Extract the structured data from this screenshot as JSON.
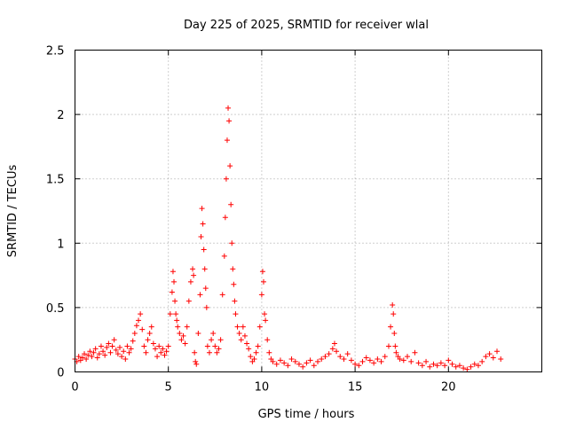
{
  "chart_data": {
    "type": "scatter",
    "title": "Day 225 of 2025, SRMTID for receiver wlal",
    "xlabel": "GPS time / hours",
    "ylabel": "SRMTID / TECUs",
    "xlim": [
      0,
      25
    ],
    "ylim": [
      0,
      2.5
    ],
    "xticks": [
      0,
      5,
      10,
      15,
      20
    ],
    "xtick_labels": [
      "0",
      "5",
      "10",
      "15",
      "20"
    ],
    "yticks": [
      0,
      0.5,
      1,
      1.5,
      2,
      2.5
    ],
    "ytick_labels": [
      "0",
      "0.5",
      "1",
      "1.5",
      "2",
      "2.5"
    ],
    "grid": true,
    "marker": "+",
    "series": [
      {
        "name": "SRMTID",
        "color": "#ff0000",
        "x": [
          0.0,
          0.1,
          0.2,
          0.3,
          0.4,
          0.5,
          0.6,
          0.7,
          0.8,
          0.9,
          1.0,
          1.1,
          1.2,
          1.3,
          1.4,
          1.5,
          1.6,
          1.7,
          1.8,
          1.9,
          2.0,
          2.1,
          2.2,
          2.3,
          2.4,
          2.5,
          2.6,
          2.7,
          2.8,
          2.9,
          3.0,
          3.1,
          3.2,
          3.3,
          3.4,
          3.5,
          3.6,
          3.7,
          3.8,
          3.9,
          4.0,
          4.1,
          4.2,
          4.3,
          4.4,
          4.5,
          4.6,
          4.7,
          4.8,
          4.9,
          5.0,
          5.1,
          5.2,
          5.25,
          5.3,
          5.35,
          5.4,
          5.45,
          5.5,
          5.6,
          5.7,
          5.8,
          5.9,
          6.0,
          6.1,
          6.2,
          6.3,
          6.35,
          6.4,
          6.45,
          6.5,
          6.6,
          6.7,
          6.75,
          6.8,
          6.85,
          6.9,
          6.95,
          7.0,
          7.05,
          7.1,
          7.2,
          7.3,
          7.4,
          7.5,
          7.6,
          7.7,
          7.8,
          7.9,
          8.0,
          8.05,
          8.1,
          8.15,
          8.2,
          8.25,
          8.3,
          8.35,
          8.4,
          8.45,
          8.5,
          8.55,
          8.6,
          8.7,
          8.8,
          8.9,
          9.0,
          9.1,
          9.2,
          9.3,
          9.4,
          9.5,
          9.6,
          9.7,
          9.8,
          9.9,
          10.0,
          10.05,
          10.1,
          10.15,
          10.2,
          10.3,
          10.4,
          10.5,
          10.6,
          10.8,
          11.0,
          11.2,
          11.4,
          11.6,
          11.8,
          12.0,
          12.2,
          12.4,
          12.6,
          12.8,
          13.0,
          13.2,
          13.4,
          13.6,
          13.8,
          13.9,
          14.0,
          14.2,
          14.4,
          14.6,
          14.8,
          15.0,
          15.2,
          15.4,
          15.6,
          15.8,
          16.0,
          16.2,
          16.4,
          16.6,
          16.8,
          16.9,
          17.0,
          17.05,
          17.1,
          17.15,
          17.2,
          17.3,
          17.4,
          17.6,
          17.8,
          18.0,
          18.2,
          18.4,
          18.6,
          18.8,
          19.0,
          19.2,
          19.4,
          19.6,
          19.8,
          20.0,
          20.2,
          20.4,
          20.6,
          20.8,
          21.0,
          21.2,
          21.4,
          21.6,
          21.8,
          22.0,
          22.2,
          22.4,
          22.6,
          22.8
        ],
        "y": [
          0.1,
          0.08,
          0.12,
          0.09,
          0.11,
          0.14,
          0.1,
          0.13,
          0.16,
          0.12,
          0.15,
          0.18,
          0.11,
          0.14,
          0.2,
          0.16,
          0.13,
          0.19,
          0.22,
          0.15,
          0.2,
          0.25,
          0.17,
          0.14,
          0.19,
          0.12,
          0.16,
          0.1,
          0.2,
          0.15,
          0.18,
          0.24,
          0.3,
          0.36,
          0.4,
          0.45,
          0.33,
          0.2,
          0.15,
          0.25,
          0.3,
          0.35,
          0.22,
          0.18,
          0.12,
          0.2,
          0.15,
          0.18,
          0.13,
          0.16,
          0.2,
          0.45,
          0.62,
          0.78,
          0.7,
          0.55,
          0.45,
          0.4,
          0.35,
          0.3,
          0.25,
          0.28,
          0.22,
          0.35,
          0.55,
          0.7,
          0.8,
          0.75,
          0.15,
          0.08,
          0.06,
          0.3,
          0.6,
          1.05,
          1.27,
          1.15,
          0.95,
          0.8,
          0.65,
          0.5,
          0.2,
          0.15,
          0.25,
          0.3,
          0.2,
          0.15,
          0.18,
          0.25,
          0.6,
          0.9,
          1.2,
          1.5,
          1.8,
          2.05,
          1.95,
          1.6,
          1.3,
          1.0,
          0.8,
          0.68,
          0.55,
          0.45,
          0.35,
          0.3,
          0.25,
          0.35,
          0.28,
          0.22,
          0.18,
          0.12,
          0.08,
          0.1,
          0.15,
          0.2,
          0.35,
          0.6,
          0.78,
          0.7,
          0.45,
          0.4,
          0.25,
          0.15,
          0.1,
          0.08,
          0.06,
          0.09,
          0.07,
          0.05,
          0.1,
          0.08,
          0.06,
          0.04,
          0.07,
          0.09,
          0.05,
          0.08,
          0.1,
          0.12,
          0.14,
          0.18,
          0.22,
          0.16,
          0.12,
          0.1,
          0.14,
          0.09,
          0.06,
          0.05,
          0.08,
          0.11,
          0.09,
          0.07,
          0.1,
          0.08,
          0.12,
          0.2,
          0.35,
          0.52,
          0.45,
          0.3,
          0.2,
          0.15,
          0.12,
          0.1,
          0.09,
          0.12,
          0.08,
          0.15,
          0.07,
          0.05,
          0.08,
          0.04,
          0.06,
          0.05,
          0.07,
          0.05,
          0.09,
          0.06,
          0.04,
          0.05,
          0.03,
          0.02,
          0.04,
          0.06,
          0.05,
          0.08,
          0.12,
          0.14,
          0.11,
          0.16,
          0.1
        ]
      }
    ]
  }
}
